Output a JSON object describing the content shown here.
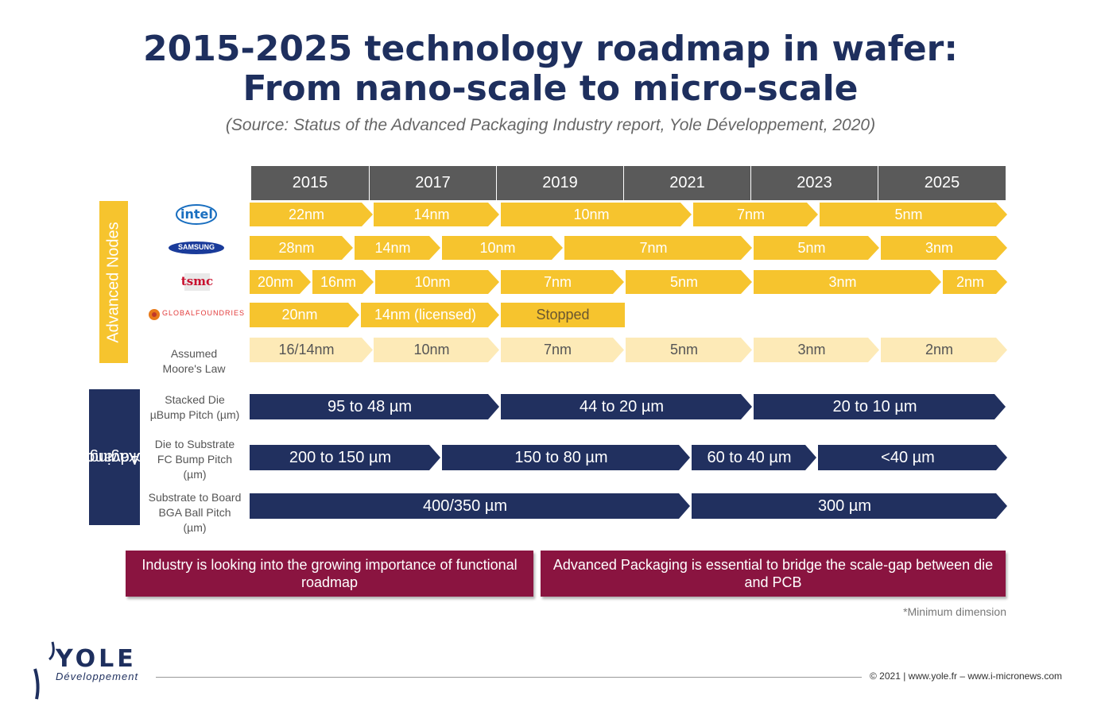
{
  "title": {
    "line1": "2015-2025 technology roadmap in wafer:",
    "line2": "From nano-scale to micro-scale"
  },
  "source": "(Source: Status of the Advanced Packaging Industry report, Yole Développement, 2020)",
  "years": [
    "2015",
    "2017",
    "2019",
    "2021",
    "2023",
    "2025"
  ],
  "side_labels": {
    "nodes": "Advanced Nodes",
    "packaging_line1": "Advanced",
    "packaging_line2": "Packaging*"
  },
  "companies": {
    "intel": "intel",
    "samsung": "SAMSUNG",
    "tsmc": "tsmc",
    "gf": "GLOBALFOUNDRIES"
  },
  "rows": {
    "intel": [
      "22nm",
      "14nm",
      "10nm",
      "7nm",
      "5nm"
    ],
    "samsung": [
      "28nm",
      "14nm",
      "10nm",
      "7nm",
      "5nm",
      "3nm"
    ],
    "tsmc": [
      "20nm",
      "16nm",
      "10nm",
      "7nm",
      "5nm",
      "3nm",
      "2nm"
    ],
    "gf": [
      "20nm",
      "14nm (licensed)",
      "Stopped"
    ],
    "moore": [
      "16/14nm",
      "10nm",
      "7nm",
      "5nm",
      "3nm",
      "2nm"
    ],
    "stacked": [
      "95 to 48 µm",
      "44 to 20 µm",
      "20 to 10 µm"
    ],
    "fc": [
      "200 to 150 µm",
      "150 to 80 µm",
      "60 to 40 µm",
      "<40 µm"
    ],
    "bga": [
      "400/350 µm",
      "300 µm"
    ]
  },
  "row_labels": {
    "moore": [
      "Assumed",
      "Moore's Law"
    ],
    "stacked": [
      "Stacked Die",
      "µBump Pitch (µm)"
    ],
    "fc": [
      "Die to Substrate",
      "FC Bump Pitch",
      "(µm)"
    ],
    "bga": [
      "Substrate to Board",
      "BGA Ball Pitch",
      "(µm)"
    ]
  },
  "notes": [
    "Industry is looking into the growing importance of functional roadmap",
    "Advanced Packaging is essential to bridge the scale-gap between die and PCB"
  ],
  "footnote": "*Minimum dimension",
  "footer": "© 2021 | www.yole.fr – www.i-micronews.com",
  "brand": {
    "name": "YOLE",
    "sub": "Développement"
  },
  "colors": {
    "navy": "#21305f",
    "gold": "#f6c42e",
    "light_gold": "#fdeab7",
    "maroon": "#8a1440",
    "gray": "#5a5a5a"
  }
}
